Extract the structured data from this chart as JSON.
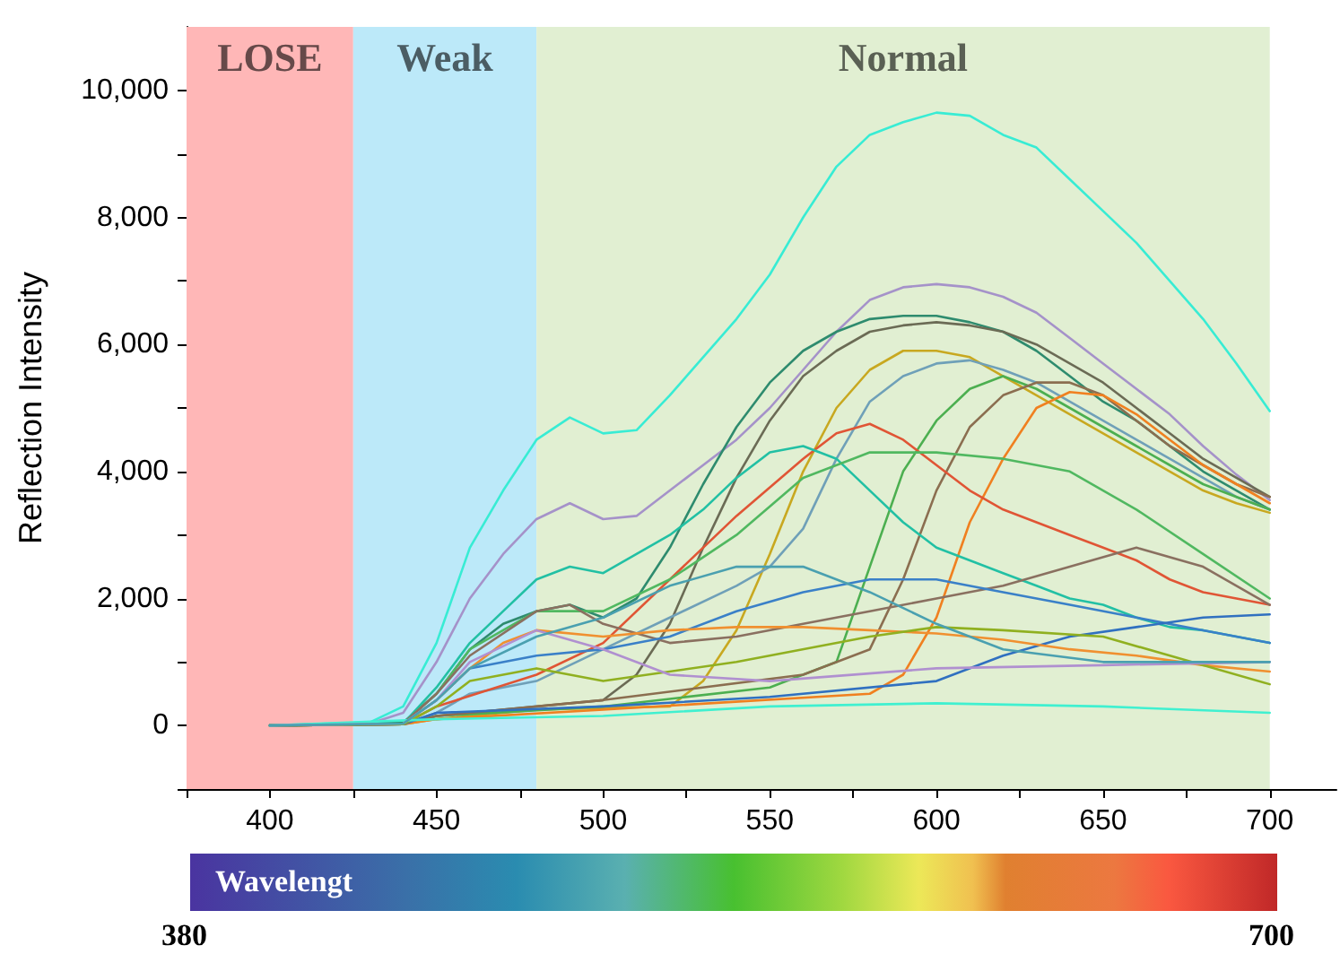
{
  "chart_data": {
    "type": "line",
    "ylabel": "Reflection Intensity",
    "xlim": [
      375,
      720
    ],
    "ylim": [
      -1000,
      11000
    ],
    "xticks": [
      {
        "value": 375,
        "label": null
      },
      400,
      {
        "value": 425,
        "label": null
      },
      450,
      {
        "value": 475,
        "label": null
      },
      500,
      {
        "value": 525,
        "label": null
      },
      550,
      {
        "value": 575,
        "label": null
      },
      600,
      {
        "value": 625,
        "label": null
      },
      650,
      {
        "value": 675,
        "label": null
      },
      700
    ],
    "yticks": [
      {
        "value": -1000,
        "label": null
      },
      0,
      {
        "value": 1000,
        "label": null
      },
      {
        "value": 2000,
        "label": "2,000"
      },
      {
        "value": 3000,
        "label": null
      },
      {
        "value": 4000,
        "label": "4,000"
      },
      {
        "value": 5000,
        "label": null
      },
      {
        "value": 6000,
        "label": "6,000"
      },
      {
        "value": 7000,
        "label": null
      },
      {
        "value": 8000,
        "label": "8,000"
      },
      {
        "value": 9000,
        "label": null
      },
      {
        "value": 10000,
        "label": "10,000"
      }
    ],
    "grid": false,
    "marker": "none",
    "line_style": "solid",
    "bands": [
      {
        "axis": "x",
        "from": 375,
        "to": 425,
        "label": "LOSE",
        "color": "#ffb7b7"
      },
      {
        "axis": "x",
        "from": 425,
        "to": 480,
        "label": "Weak",
        "color": "#bce9f9"
      },
      {
        "axis": "x",
        "from": 480,
        "to": 700,
        "label": "Normal",
        "color": "#e1efd2"
      }
    ],
    "annotations": [
      "Wavelengt",
      "380",
      "700"
    ],
    "series": [
      {
        "color": "#38ecd4",
        "x": [
          400,
          430,
          440,
          450,
          460,
          470,
          480,
          490,
          500,
          510,
          520,
          530,
          540,
          550,
          560,
          570,
          580,
          590,
          600,
          610,
          620,
          630,
          640,
          650,
          660,
          670,
          680,
          690,
          700
        ],
        "values": [
          0,
          50,
          300,
          1300,
          2800,
          3700,
          4500,
          4850,
          4600,
          4650,
          5200,
          5800,
          6400,
          7100,
          8000,
          8800,
          9300,
          9500,
          9650,
          9600,
          9300,
          9100,
          8600,
          8100,
          7600,
          7000,
          6400,
          5700,
          4950
        ]
      },
      {
        "color": "#a592c9",
        "x": [
          400,
          430,
          440,
          450,
          460,
          470,
          480,
          490,
          500,
          510,
          520,
          530,
          540,
          550,
          560,
          570,
          580,
          590,
          600,
          610,
          620,
          630,
          640,
          650,
          660,
          670,
          680,
          690,
          700
        ],
        "values": [
          0,
          30,
          200,
          1000,
          2000,
          2700,
          3250,
          3500,
          3250,
          3300,
          3700,
          4100,
          4500,
          5000,
          5600,
          6200,
          6700,
          6900,
          6950,
          6900,
          6750,
          6500,
          6100,
          5700,
          5300,
          4900,
          4400,
          3950,
          3550
        ]
      },
      {
        "color": "#2e8b6e",
        "x": [
          400,
          440,
          450,
          460,
          470,
          480,
          490,
          500,
          510,
          520,
          530,
          540,
          550,
          560,
          570,
          580,
          590,
          600,
          610,
          620,
          630,
          640,
          650,
          660,
          670,
          680,
          690,
          700
        ],
        "values": [
          0,
          50,
          500,
          1200,
          1600,
          1800,
          1900,
          1700,
          2000,
          2800,
          3800,
          4700,
          5400,
          5900,
          6200,
          6400,
          6450,
          6450,
          6350,
          6200,
          5900,
          5500,
          5100,
          4800,
          4400,
          4000,
          3700,
          3400
        ]
      },
      {
        "color": "#6b6b55",
        "x": [
          400,
          440,
          450,
          480,
          500,
          510,
          520,
          530,
          540,
          550,
          560,
          570,
          580,
          590,
          600,
          610,
          620,
          630,
          640,
          650,
          660,
          670,
          680,
          690,
          700
        ],
        "values": [
          0,
          20,
          150,
          300,
          400,
          800,
          1600,
          2800,
          3900,
          4800,
          5500,
          5900,
          6200,
          6300,
          6350,
          6300,
          6200,
          6000,
          5700,
          5400,
          5000,
          4600,
          4200,
          3900,
          3600
        ]
      },
      {
        "color": "#c8a820",
        "x": [
          400,
          440,
          450,
          480,
          520,
          530,
          540,
          550,
          560,
          570,
          580,
          590,
          600,
          610,
          620,
          630,
          640,
          650,
          660,
          670,
          680,
          690,
          700
        ],
        "values": [
          0,
          20,
          100,
          250,
          300,
          700,
          1500,
          2700,
          4000,
          5000,
          5600,
          5900,
          5900,
          5800,
          5500,
          5200,
          4900,
          4600,
          4300,
          4000,
          3700,
          3500,
          3350
        ]
      },
      {
        "color": "#6fa0b8",
        "x": [
          400,
          440,
          450,
          460,
          480,
          500,
          520,
          540,
          550,
          560,
          570,
          580,
          590,
          600,
          610,
          620,
          630,
          640,
          650,
          660,
          670,
          680,
          690,
          700
        ],
        "values": [
          0,
          20,
          200,
          500,
          700,
          1200,
          1700,
          2200,
          2500,
          3100,
          4200,
          5100,
          5500,
          5700,
          5750,
          5600,
          5400,
          5100,
          4800,
          4500,
          4200,
          3900,
          3600,
          3400
        ]
      },
      {
        "color": "#4caf50",
        "x": [
          400,
          440,
          450,
          500,
          550,
          570,
          580,
          590,
          600,
          610,
          620,
          630,
          640,
          650,
          660,
          670,
          680,
          690,
          700
        ],
        "values": [
          0,
          20,
          150,
          300,
          600,
          1000,
          2500,
          4000,
          4800,
          5300,
          5500,
          5300,
          5000,
          4700,
          4400,
          4100,
          3800,
          3600,
          3400
        ]
      },
      {
        "color": "#8b6e50",
        "x": [
          400,
          440,
          450,
          500,
          560,
          580,
          590,
          600,
          610,
          620,
          630,
          640,
          650,
          660,
          670,
          680,
          690,
          700
        ],
        "values": [
          0,
          20,
          150,
          400,
          800,
          1200,
          2300,
          3700,
          4700,
          5200,
          5400,
          5400,
          5200,
          4800,
          4400,
          4100,
          3800,
          3600
        ]
      },
      {
        "color": "#f08020",
        "x": [
          400,
          440,
          450,
          500,
          580,
          590,
          600,
          610,
          620,
          630,
          640,
          650,
          660,
          670,
          680,
          690,
          700
        ],
        "values": [
          0,
          20,
          100,
          250,
          500,
          800,
          1700,
          3200,
          4200,
          5000,
          5250,
          5200,
          4900,
          4500,
          4100,
          3800,
          3500
        ]
      },
      {
        "color": "#e05535",
        "x": [
          400,
          440,
          450,
          480,
          500,
          520,
          540,
          560,
          570,
          580,
          590,
          600,
          610,
          620,
          630,
          640,
          650,
          660,
          670,
          680,
          690,
          700
        ],
        "values": [
          0,
          20,
          300,
          800,
          1300,
          2300,
          3300,
          4200,
          4600,
          4750,
          4500,
          4100,
          3700,
          3400,
          3200,
          3000,
          2800,
          2600,
          2300,
          2100,
          2000,
          1900
        ]
      },
      {
        "color": "#22c0a4",
        "x": [
          400,
          440,
          450,
          460,
          470,
          480,
          490,
          500,
          510,
          520,
          530,
          540,
          550,
          560,
          570,
          580,
          590,
          600,
          610,
          620,
          630,
          640,
          650,
          660,
          670,
          680,
          690,
          700
        ],
        "values": [
          0,
          30,
          600,
          1300,
          1800,
          2300,
          2500,
          2400,
          2700,
          3000,
          3400,
          3900,
          4300,
          4400,
          4200,
          3700,
          3200,
          2800,
          2600,
          2400,
          2200,
          2000,
          1900,
          1700,
          1550,
          1500,
          1400,
          1300
        ]
      },
      {
        "color": "#50b860",
        "x": [
          400,
          440,
          450,
          460,
          480,
          500,
          520,
          540,
          560,
          580,
          600,
          620,
          640,
          660,
          680,
          700
        ],
        "values": [
          0,
          30,
          500,
          1200,
          1800,
          1800,
          2300,
          3000,
          3900,
          4300,
          4300,
          4200,
          4000,
          3400,
          2700,
          2000
        ]
      },
      {
        "color": "#8a7060",
        "x": [
          400,
          440,
          450,
          460,
          480,
          490,
          500,
          520,
          540,
          560,
          580,
          600,
          620,
          640,
          660,
          680,
          700
        ],
        "values": [
          0,
          30,
          500,
          1100,
          1800,
          1900,
          1600,
          1300,
          1400,
          1600,
          1800,
          2000,
          2200,
          2500,
          2800,
          2500,
          1900
        ]
      },
      {
        "color": "#3a80c8",
        "x": [
          400,
          440,
          450,
          460,
          480,
          500,
          520,
          540,
          560,
          580,
          600,
          620,
          640,
          660,
          680,
          700
        ],
        "values": [
          0,
          30,
          400,
          900,
          1100,
          1200,
          1400,
          1800,
          2100,
          2300,
          2300,
          2100,
          1900,
          1700,
          1500,
          1300
        ]
      },
      {
        "color": "#3070c0",
        "x": [
          400,
          440,
          450,
          500,
          550,
          600,
          620,
          640,
          660,
          680,
          700
        ],
        "values": [
          0,
          20,
          200,
          300,
          450,
          700,
          1100,
          1400,
          1550,
          1700,
          1750
        ]
      },
      {
        "color": "#f09030",
        "x": [
          400,
          440,
          450,
          460,
          470,
          480,
          500,
          520,
          540,
          560,
          580,
          600,
          620,
          640,
          660,
          680,
          700
        ],
        "values": [
          0,
          30,
          400,
          900,
          1300,
          1500,
          1400,
          1500,
          1550,
          1550,
          1500,
          1450,
          1350,
          1200,
          1100,
          950,
          850
        ]
      },
      {
        "color": "#90b020",
        "x": [
          400,
          440,
          450,
          460,
          480,
          500,
          540,
          580,
          600,
          620,
          650,
          700
        ],
        "values": [
          0,
          20,
          300,
          700,
          900,
          700,
          1000,
          1400,
          1550,
          1500,
          1400,
          650
        ]
      },
      {
        "color": "#40f0d0",
        "x": [
          400,
          450,
          500,
          550,
          600,
          650,
          700
        ],
        "values": [
          0,
          100,
          150,
          300,
          350,
          300,
          200
        ]
      },
      {
        "color": "#b090d0",
        "x": [
          400,
          440,
          450,
          460,
          480,
          500,
          520,
          550,
          600,
          650,
          700
        ],
        "values": [
          0,
          30,
          400,
          1000,
          1500,
          1200,
          800,
          700,
          900,
          950,
          1000
        ]
      },
      {
        "color": "#4aa0b0",
        "x": [
          400,
          440,
          450,
          460,
          480,
          500,
          520,
          540,
          560,
          580,
          600,
          620,
          650,
          700
        ],
        "values": [
          0,
          30,
          400,
          900,
          1400,
          1700,
          2200,
          2500,
          2500,
          2100,
          1600,
          1200,
          1000,
          1000
        ]
      }
    ]
  }
}
